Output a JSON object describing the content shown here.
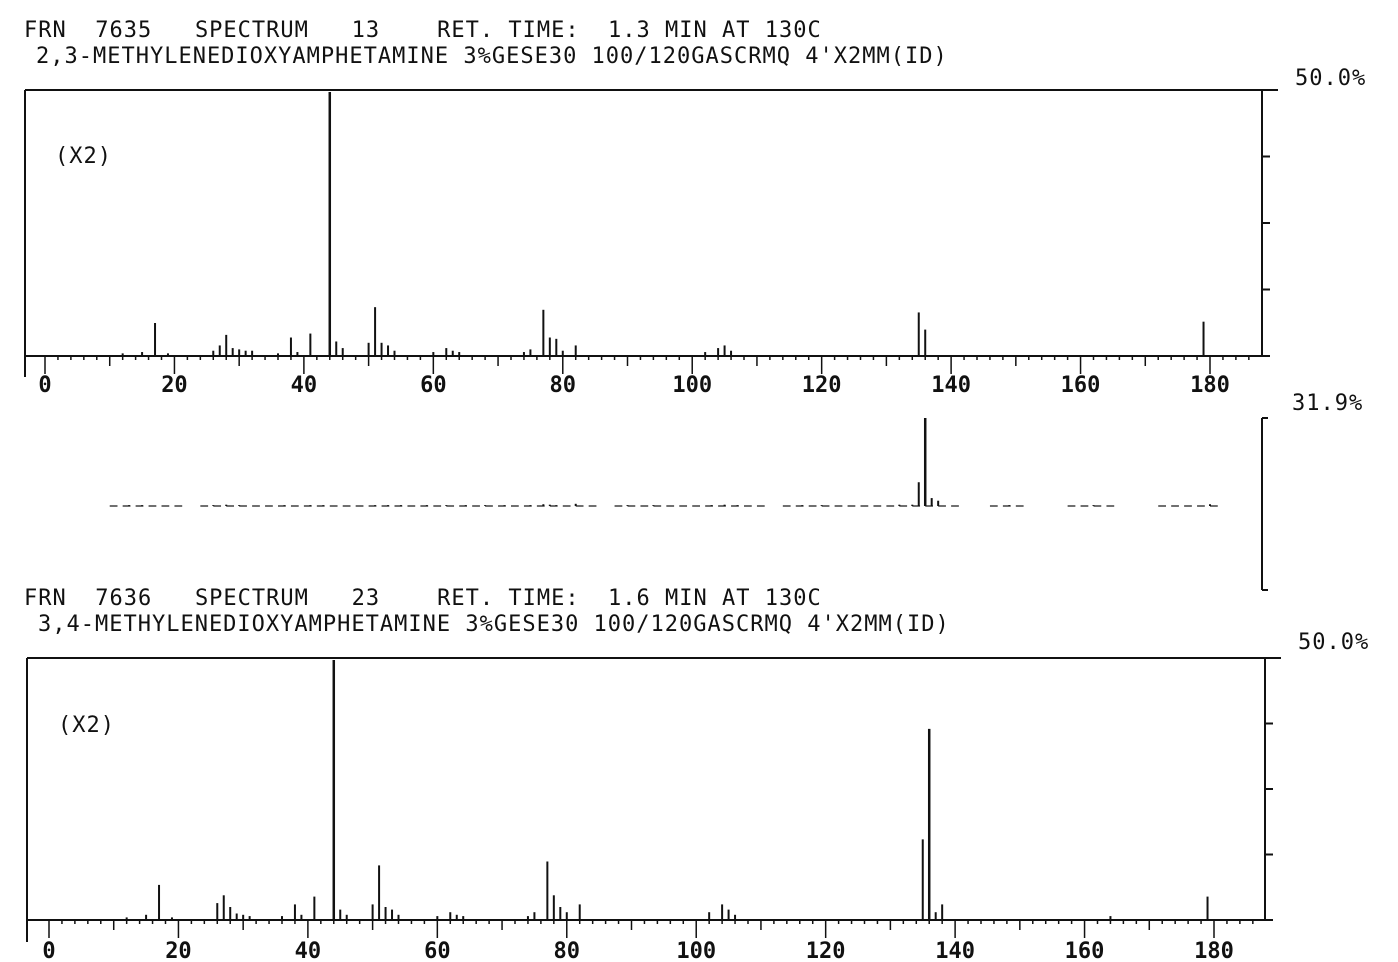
{
  "colors": {
    "ink": "#111111",
    "paper": "#ffffff"
  },
  "chart_data": [
    {
      "type": "bar",
      "header_line1": "FRN  7635   SPECTRUM   13    RET. TIME:  1.3 MIN AT 130C",
      "header_line2": "2,3-METHYLENEDIOXYAMPHETAMINE 3%GESE30 100/120GASCRMQ 4'X2MM(ID)",
      "scale_label": "50.0%",
      "multiplier": "(X2)",
      "xlim": [
        -2,
        187
      ],
      "ylim": [
        0,
        100
      ],
      "xticks": [
        0,
        20,
        40,
        60,
        80,
        100,
        120,
        140,
        160,
        180
      ],
      "xtick_labels": [
        "0",
        "20",
        "40",
        "60",
        "80",
        "100",
        "120",
        "140",
        "160",
        "180"
      ],
      "peaks": [
        [
          12,
          1
        ],
        [
          15,
          1.5
        ],
        [
          17,
          12.5
        ],
        [
          19,
          1
        ],
        [
          26,
          2
        ],
        [
          27,
          4
        ],
        [
          28,
          8
        ],
        [
          29,
          3
        ],
        [
          30,
          2.5
        ],
        [
          31,
          2
        ],
        [
          32,
          2
        ],
        [
          36,
          1
        ],
        [
          38,
          7
        ],
        [
          39,
          1.5
        ],
        [
          41,
          8.5
        ],
        [
          44,
          100
        ],
        [
          45,
          5.5
        ],
        [
          46,
          3
        ],
        [
          50,
          5
        ],
        [
          51,
          18.5
        ],
        [
          52,
          5
        ],
        [
          53,
          4
        ],
        [
          54,
          2
        ],
        [
          60,
          1.5
        ],
        [
          62,
          3
        ],
        [
          63,
          2
        ],
        [
          64,
          1.5
        ],
        [
          74,
          1.5
        ],
        [
          75,
          2.5
        ],
        [
          77,
          17.5
        ],
        [
          78,
          7
        ],
        [
          79,
          6.5
        ],
        [
          80,
          2
        ],
        [
          82,
          4
        ],
        [
          102,
          1.5
        ],
        [
          104,
          3
        ],
        [
          105,
          4
        ],
        [
          106,
          2
        ],
        [
          135,
          16.5
        ],
        [
          136,
          10
        ],
        [
          179,
          13
        ]
      ]
    },
    {
      "type": "bar",
      "scale_label": "31.9%",
      "xlim": [
        -2,
        187
      ],
      "ylim": [
        0,
        100
      ],
      "peaks": [
        [
          13,
          1
        ],
        [
          15,
          1
        ],
        [
          26,
          1
        ],
        [
          28,
          1.5
        ],
        [
          30,
          1
        ],
        [
          37,
          1
        ],
        [
          41,
          1
        ],
        [
          43,
          1
        ],
        [
          51,
          1
        ],
        [
          53,
          1
        ],
        [
          55,
          1
        ],
        [
          59,
          1
        ],
        [
          62,
          1
        ],
        [
          65,
          1
        ],
        [
          68,
          1
        ],
        [
          71,
          1
        ],
        [
          75,
          1
        ],
        [
          77,
          2
        ],
        [
          78,
          1.5
        ],
        [
          79,
          1
        ],
        [
          82,
          2.5
        ],
        [
          90,
          1
        ],
        [
          94,
          1
        ],
        [
          103,
          1
        ],
        [
          105,
          1.5
        ],
        [
          107,
          1
        ],
        [
          117,
          1
        ],
        [
          120,
          1
        ],
        [
          132,
          1.5
        ],
        [
          134,
          1.5
        ],
        [
          135,
          27
        ],
        [
          136,
          100
        ],
        [
          137,
          9
        ],
        [
          138,
          6
        ],
        [
          149,
          1
        ],
        [
          162,
          1
        ],
        [
          180,
          2
        ]
      ]
    },
    {
      "type": "bar",
      "header_line1": "FRN  7636   SPECTRUM   23    RET. TIME:  1.6 MIN AT 130C",
      "header_line2": "3,4-METHYLENEDIOXYAMPHETAMINE 3%GESE30 100/120GASCRMQ 4'X2MM(ID)",
      "scale_label": "50.0%",
      "multiplier": "(X2)",
      "xlim": [
        -2,
        187
      ],
      "ylim": [
        0,
        100
      ],
      "xticks": [
        0,
        20,
        40,
        60,
        80,
        100,
        120,
        140,
        160,
        180
      ],
      "xtick_labels": [
        "0",
        "20",
        "40",
        "60",
        "80",
        "100",
        "120",
        "140",
        "160",
        "180"
      ],
      "peaks": [
        [
          12,
          1
        ],
        [
          15,
          2
        ],
        [
          17,
          13.5
        ],
        [
          19,
          1
        ],
        [
          26,
          6.5
        ],
        [
          27,
          9.5
        ],
        [
          28,
          5
        ],
        [
          29,
          2.5
        ],
        [
          30,
          2
        ],
        [
          31,
          1.5
        ],
        [
          36,
          1.5
        ],
        [
          38,
          6
        ],
        [
          39,
          2
        ],
        [
          41,
          9
        ],
        [
          44,
          100
        ],
        [
          45,
          4
        ],
        [
          46,
          2
        ],
        [
          50,
          6
        ],
        [
          51,
          21
        ],
        [
          52,
          5
        ],
        [
          53,
          4
        ],
        [
          54,
          2
        ],
        [
          60,
          1.5
        ],
        [
          62,
          3
        ],
        [
          63,
          2
        ],
        [
          64,
          1.5
        ],
        [
          74,
          1.5
        ],
        [
          75,
          3
        ],
        [
          77,
          22.5
        ],
        [
          78,
          9.5
        ],
        [
          79,
          5
        ],
        [
          80,
          3
        ],
        [
          82,
          6
        ],
        [
          102,
          3
        ],
        [
          104,
          6
        ],
        [
          105,
          4
        ],
        [
          106,
          2
        ],
        [
          135,
          31
        ],
        [
          136,
          73.5
        ],
        [
          137,
          3
        ],
        [
          138,
          6
        ],
        [
          164,
          1.5
        ],
        [
          179,
          9
        ]
      ]
    }
  ]
}
